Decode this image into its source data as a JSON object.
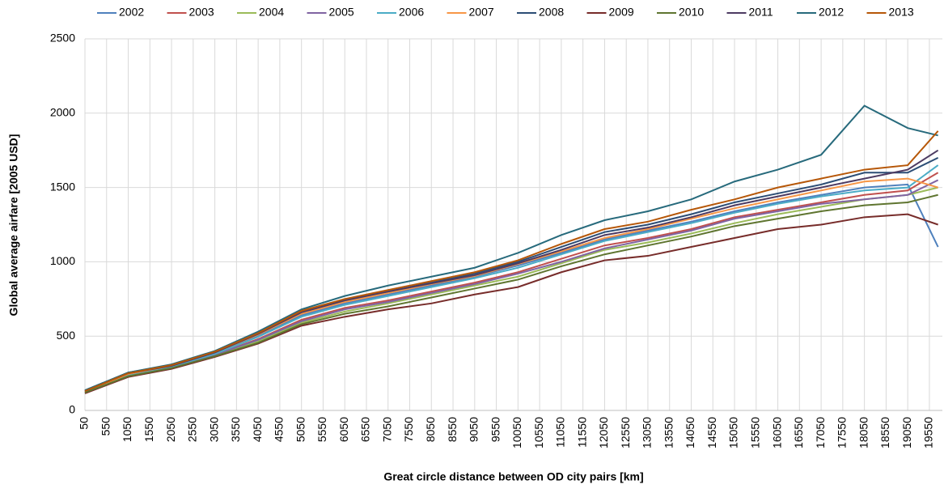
{
  "chart_data": {
    "type": "line",
    "xlabel": "Great circle distance between OD city pairs [km]",
    "ylabel": "Global average airfare [2005 USD]",
    "x": [
      50,
      1050,
      2050,
      3050,
      4050,
      5050,
      6050,
      7050,
      8050,
      9050,
      10050,
      11050,
      12050,
      13050,
      14050,
      15050,
      16050,
      17050,
      18050,
      19050,
      19750
    ],
    "xlim": [
      50,
      19850
    ],
    "xticks": [
      50,
      550,
      1050,
      1550,
      2050,
      2550,
      3050,
      3550,
      4050,
      4550,
      5050,
      5550,
      6050,
      6550,
      7050,
      7550,
      8050,
      8550,
      9050,
      9550,
      10050,
      10550,
      11050,
      11550,
      12050,
      12550,
      13050,
      13550,
      14050,
      14550,
      15050,
      15550,
      16050,
      16550,
      17050,
      17550,
      18050,
      18550,
      19050,
      19550
    ],
    "ylim": [
      0,
      2500
    ],
    "yticks": [
      0,
      500,
      1000,
      1500,
      2000,
      2500
    ],
    "grid": true,
    "legend": "top",
    "series": [
      {
        "name": "2002",
        "color": "#4f81bd",
        "values": [
          130,
          245,
          300,
          385,
          500,
          640,
          720,
          780,
          840,
          900,
          975,
          1060,
          1150,
          1210,
          1270,
          1340,
          1400,
          1450,
          1500,
          1520,
          1100
        ]
      },
      {
        "name": "2003",
        "color": "#c0504d",
        "values": [
          125,
          240,
          290,
          375,
          480,
          610,
          690,
          740,
          800,
          860,
          930,
          1020,
          1110,
          1160,
          1220,
          1300,
          1350,
          1400,
          1450,
          1480,
          1600
        ]
      },
      {
        "name": "2004",
        "color": "#9bbb59",
        "values": [
          120,
          235,
          285,
          370,
          465,
          590,
          665,
          720,
          780,
          840,
          900,
          990,
          1080,
          1130,
          1190,
          1260,
          1320,
          1370,
          1420,
          1450,
          1500
        ]
      },
      {
        "name": "2005",
        "color": "#8064a2",
        "values": [
          120,
          235,
          290,
          375,
          475,
          600,
          680,
          730,
          790,
          850,
          920,
          1000,
          1090,
          1150,
          1210,
          1290,
          1340,
          1390,
          1420,
          1450,
          1550
        ]
      },
      {
        "name": "2006",
        "color": "#4bacc6",
        "values": [
          125,
          240,
          295,
          380,
          495,
          630,
          710,
          770,
          830,
          890,
          960,
          1050,
          1140,
          1200,
          1260,
          1330,
          1390,
          1440,
          1480,
          1500,
          1650
        ]
      },
      {
        "name": "2007",
        "color": "#f79646",
        "values": [
          125,
          245,
          300,
          390,
          510,
          650,
          730,
          790,
          850,
          905,
          985,
          1070,
          1160,
          1220,
          1290,
          1360,
          1420,
          1480,
          1540,
          1560,
          1500
        ]
      },
      {
        "name": "2008",
        "color": "#2c4d75",
        "values": [
          135,
          255,
          305,
          395,
          520,
          665,
          745,
          800,
          860,
          920,
          1000,
          1100,
          1200,
          1250,
          1320,
          1400,
          1460,
          1520,
          1600,
          1600,
          1700
        ]
      },
      {
        "name": "2009",
        "color": "#772c2a",
        "values": [
          115,
          225,
          280,
          360,
          450,
          570,
          630,
          680,
          720,
          780,
          830,
          930,
          1010,
          1040,
          1100,
          1160,
          1220,
          1250,
          1300,
          1320,
          1250
        ]
      },
      {
        "name": "2010",
        "color": "#5f7530",
        "values": [
          120,
          230,
          285,
          365,
          455,
          580,
          650,
          700,
          760,
          820,
          880,
          970,
          1050,
          1110,
          1170,
          1240,
          1290,
          1340,
          1380,
          1400,
          1450
        ]
      },
      {
        "name": "2011",
        "color": "#4d3b62",
        "values": [
          130,
          250,
          300,
          390,
          515,
          660,
          740,
          800,
          855,
          910,
          990,
          1080,
          1180,
          1230,
          1300,
          1380,
          1440,
          1500,
          1560,
          1620,
          1750
        ]
      },
      {
        "name": "2012",
        "color": "#276a7c",
        "values": [
          135,
          255,
          310,
          400,
          530,
          680,
          770,
          840,
          900,
          960,
          1060,
          1180,
          1280,
          1340,
          1420,
          1540,
          1620,
          1720,
          2050,
          1900,
          1850
        ]
      },
      {
        "name": "2013",
        "color": "#b65708",
        "values": [
          130,
          250,
          305,
          395,
          520,
          670,
          750,
          810,
          870,
          930,
          1010,
          1120,
          1220,
          1270,
          1350,
          1420,
          1500,
          1560,
          1620,
          1650,
          1880
        ]
      }
    ]
  }
}
